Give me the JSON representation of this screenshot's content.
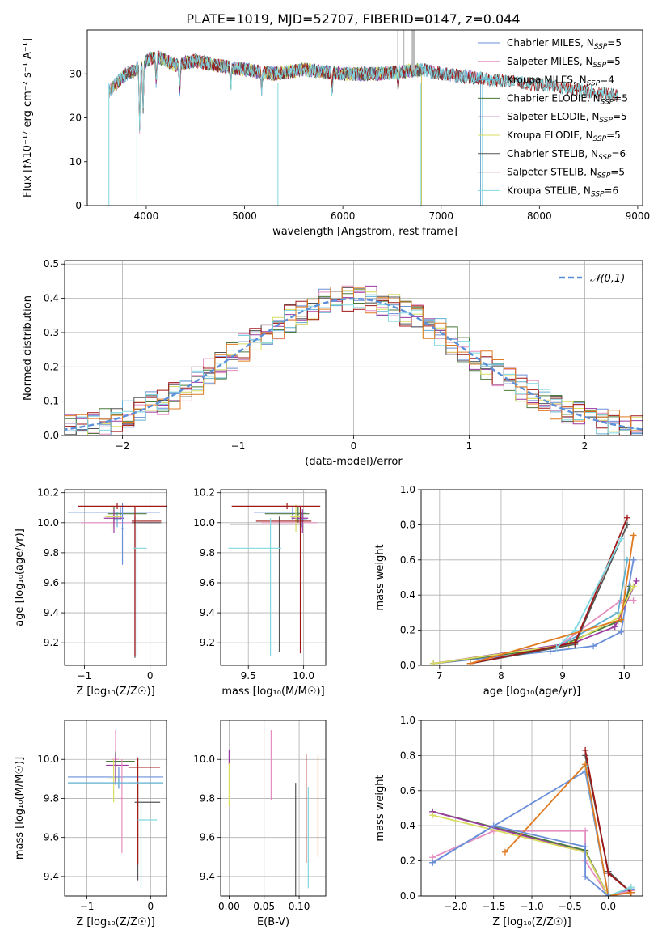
{
  "title": "PLATE=1019, MJD=52707, FIBERID=0147, z=0.044",
  "colors": {
    "Chabrier MILES": "#6a8fd8",
    "Salpeter MILES": "#e58fc0",
    "Kroupa MILES": "#5fb0d0",
    "Chabrier ELODIE": "#4a7a3a",
    "Salpeter ELODIE": "#9a3aa0",
    "Kroupa ELODIE": "#d8dc60",
    "Chabrier STELIB": "#555555",
    "Salpeter STELIB": "#a01818",
    "Kroupa STELIB": "#80d8e0"
  },
  "chart_data": [
    {
      "id": "spectrum",
      "type": "line",
      "xlabel": "wavelength [Angstrom, rest frame]",
      "ylabel": "Flux [fλ10⁻¹⁷ erg cm⁻² s⁻¹ A⁻¹]",
      "xlim": [
        3400,
        9050
      ],
      "ylim": [
        0,
        40
      ],
      "xticks": [
        4000,
        5000,
        6000,
        7000,
        8000,
        9000
      ],
      "yticks": [
        0,
        10,
        20,
        30
      ],
      "grid": false,
      "legend_position": "right",
      "series": [
        {
          "name": "Chabrier MILES, N",
          "sub": "SSP",
          "suffix": "=5"
        },
        {
          "name": "Salpeter MILES, N",
          "sub": "SSP",
          "suffix": "=5"
        },
        {
          "name": "Kroupa MILES, N",
          "sub": "SSP",
          "suffix": "=4"
        },
        {
          "name": "Chabrier ELODIE, N",
          "sub": "SSP",
          "suffix": "=5"
        },
        {
          "name": "Salpeter ELODIE, N",
          "sub": "SSP",
          "suffix": "=5"
        },
        {
          "name": "Kroupa ELODIE, N",
          "sub": "SSP",
          "suffix": "=5"
        },
        {
          "name": "Chabrier STELIB, N",
          "sub": "SSP",
          "suffix": "=6"
        },
        {
          "name": "Salpeter STELIB, N",
          "sub": "SSP",
          "suffix": "=5"
        },
        {
          "name": "Kroupa STELIB, N",
          "sub": "SSP",
          "suffix": "=6"
        }
      ],
      "continuum": {
        "x": [
          3620,
          3700,
          3800,
          3900,
          4000,
          4100,
          4200,
          4300,
          4500,
          4700,
          5000,
          5300,
          5600,
          6000,
          6400,
          6800,
          7000,
          7400,
          7800,
          8200,
          8500,
          8800
        ],
        "y": [
          26,
          28,
          30,
          31,
          33,
          34,
          33,
          32,
          33,
          32,
          31,
          30,
          31,
          30,
          30,
          31,
          30,
          29,
          28,
          27,
          26,
          25
        ]
      }
    },
    {
      "id": "residuals",
      "type": "step",
      "xlabel": "(data-model)/error",
      "ylabel": "Normed distribution",
      "xlim": [
        -2.5,
        2.5
      ],
      "ylim": [
        0,
        0.51
      ],
      "xticks": [
        -2,
        -1,
        0,
        1,
        2
      ],
      "yticks": [
        0.0,
        0.1,
        0.2,
        0.3,
        0.4,
        0.5
      ],
      "grid": true,
      "legend": "𝒩(0,1)",
      "legend_position": "top-right"
    },
    {
      "id": "age-vs-Z",
      "type": "errorbar",
      "xlabel": "Z [log₁₀(Z/Z☉)]",
      "ylabel": "age  [log₁₀(age/yr)]",
      "xlim": [
        -1.3,
        0.25
      ],
      "ylim": [
        9.05,
        10.22
      ],
      "xticks": [
        -1,
        0
      ],
      "yticks": [
        9.2,
        9.4,
        9.6,
        9.8,
        10.0,
        10.2
      ],
      "grid": true,
      "points": [
        {
          "series": "Chabrier MILES",
          "x": -0.45,
          "xerr": [
            0.8,
            0.6
          ],
          "y": 10.07,
          "yerr": [
            0.05,
            0.03
          ]
        },
        {
          "series": "Salpeter MILES",
          "x": -0.55,
          "xerr": [
            0.5,
            0.7
          ],
          "y": 10.0,
          "yerr": [
            0.03,
            0.05
          ]
        },
        {
          "series": "Kroupa MILES",
          "x": -0.5,
          "xerr": [
            0.05,
            0.05
          ],
          "y": 10.02,
          "yerr": [
            0.05,
            0.05
          ]
        },
        {
          "series": "Chabrier ELODIE",
          "x": -0.55,
          "xerr": [
            0.1,
            0.5
          ],
          "y": 10.06,
          "yerr": [
            0.06,
            0.05
          ]
        },
        {
          "series": "Salpeter ELODIE",
          "x": -0.55,
          "xerr": [
            0.15,
            0.15
          ],
          "y": 10.03,
          "yerr": [
            0.1,
            0.06
          ]
        },
        {
          "series": "Kroupa ELODIE",
          "x": -0.58,
          "xerr": [
            0.1,
            0.15
          ],
          "y": 10.04,
          "yerr": [
            0.1,
            0.08
          ]
        },
        {
          "series": "Chabrier STELIB",
          "x": -0.23,
          "xerr": [
            0.05,
            0.4
          ],
          "y": 10.0,
          "yerr": [
            0.9,
            0.05
          ]
        },
        {
          "series": "Salpeter STELIB",
          "x": -0.23,
          "xerr": [
            0.05,
            0.4
          ],
          "y": 10.01,
          "yerr": [
            0.9,
            0.1
          ]
        },
        {
          "series": "Kroupa STELIB",
          "x": -0.2,
          "xerr": [
            0.05,
            0.15
          ],
          "y": 9.83,
          "yerr": [
            0.72,
            0.2
          ]
        },
        {
          "series": "Chabrier MILES",
          "x": -0.42,
          "xerr": [
            0.02,
            0.02
          ],
          "y": 9.96,
          "yerr": [
            0.24,
            0.17
          ]
        },
        {
          "series": "Salpeter STELIB",
          "x": -0.5,
          "xerr": [
            0.6,
            0.78
          ],
          "y": 10.11,
          "yerr": [
            0.02,
            0.02
          ]
        }
      ]
    },
    {
      "id": "age-vs-mass",
      "type": "errorbar",
      "xlabel": "mass [log₁₀(M/M☉)]",
      "ylabel": "",
      "xlim": [
        9.25,
        10.2
      ],
      "ylim": [
        9.05,
        10.22
      ],
      "xticks": [
        9.5,
        10.0
      ],
      "yticks": [
        9.2,
        9.4,
        9.6,
        9.8,
        10.0,
        10.2
      ],
      "grid": true,
      "points": [
        {
          "series": "Chabrier MILES",
          "x": 9.9,
          "xerr": [
            0.35,
            0.12
          ],
          "y": 10.07,
          "yerr": [
            0.05,
            0.03
          ]
        },
        {
          "series": "Salpeter MILES",
          "x": 9.97,
          "xerr": [
            0.35,
            0.15
          ],
          "y": 10.0,
          "yerr": [
            0.05,
            0.05
          ]
        },
        {
          "series": "Kroupa MILES",
          "x": 9.98,
          "xerr": [
            0.05,
            0.05
          ],
          "y": 10.02,
          "yerr": [
            0.05,
            0.05
          ]
        },
        {
          "series": "Chabrier ELODIE",
          "x": 9.95,
          "xerr": [
            0.3,
            0.1
          ],
          "y": 10.06,
          "yerr": [
            0.06,
            0.05
          ]
        },
        {
          "series": "Salpeter ELODIE",
          "x": 9.99,
          "xerr": [
            0.1,
            0.05
          ],
          "y": 10.03,
          "yerr": [
            0.1,
            0.06
          ]
        },
        {
          "series": "Kroupa ELODIE",
          "x": 9.93,
          "xerr": [
            0.05,
            0.05
          ],
          "y": 10.04,
          "yerr": [
            0.1,
            0.08
          ]
        },
        {
          "series": "Chabrier STELIB",
          "x": 9.78,
          "xerr": [
            0.45,
            0.2
          ],
          "y": 9.99,
          "yerr": [
            0.85,
            0.05
          ]
        },
        {
          "series": "Salpeter STELIB",
          "x": 9.97,
          "xerr": [
            0.4,
            0.1
          ],
          "y": 10.01,
          "yerr": [
            0.88,
            0.1
          ]
        },
        {
          "series": "Kroupa STELIB",
          "x": 9.7,
          "xerr": [
            0.38,
            0.1
          ],
          "y": 9.83,
          "yerr": [
            0.72,
            0.2
          ]
        },
        {
          "series": "Salpeter STELIB",
          "x": 9.85,
          "xerr": [
            0.5,
            0.3
          ],
          "y": 10.11,
          "yerr": [
            0.02,
            0.02
          ]
        }
      ]
    },
    {
      "id": "massweight-vs-age",
      "type": "line",
      "xlabel": "age  [log₁₀(age/yr)]",
      "ylabel": "mass weight",
      "xlim": [
        6.7,
        10.3
      ],
      "ylim": [
        0,
        1
      ],
      "xticks": [
        7,
        8,
        9,
        10
      ],
      "yticks": [
        0.0,
        0.2,
        0.4,
        0.6,
        0.8,
        1.0
      ],
      "grid": true,
      "series": [
        {
          "name": "Chabrier MILES",
          "x": [
            6.9,
            8.8,
            9.5,
            9.95,
            10.15
          ],
          "y": [
            0.01,
            0.08,
            0.11,
            0.19,
            0.6
          ]
        },
        {
          "name": "Salpeter MILES",
          "x": [
            6.9,
            8.9,
            9.95,
            10.15
          ],
          "y": [
            0.01,
            0.1,
            0.37,
            0.37
          ]
        },
        {
          "name": "Kroupa MILES",
          "x": [
            8.9,
            9.9,
            10.05
          ],
          "y": [
            0.1,
            0.3,
            0.6
          ]
        },
        {
          "name": "Chabrier ELODIE",
          "x": [
            6.9,
            8.9,
            9.9,
            10.1
          ],
          "y": [
            0.01,
            0.1,
            0.25,
            0.45
          ]
        },
        {
          "name": "Salpeter ELODIE",
          "x": [
            6.9,
            9.2,
            9.85,
            10.2
          ],
          "y": [
            0.01,
            0.13,
            0.22,
            0.48
          ]
        },
        {
          "name": "Kroupa ELODIE",
          "x": [
            6.9,
            9.1,
            9.9,
            10.15
          ],
          "y": [
            0.01,
            0.12,
            0.27,
            0.45
          ]
        },
        {
          "name": "Chabrier STELIB",
          "x": [
            7.5,
            9.2,
            10.05
          ],
          "y": [
            0.01,
            0.12,
            0.8
          ]
        },
        {
          "name": "Salpeter STELIB",
          "x": [
            7.5,
            9.2,
            10.05
          ],
          "y": [
            0.01,
            0.13,
            0.84
          ]
        },
        {
          "name": "Kroupa STELIB",
          "x": [
            8.9,
            9.2,
            9.95
          ],
          "y": [
            0.1,
            0.2,
            0.72
          ]
        },
        {
          "name": "orange",
          "x": [
            7.5,
            9.95,
            10.15
          ],
          "y": [
            0.01,
            0.26,
            0.74
          ]
        }
      ]
    },
    {
      "id": "mass-vs-Z",
      "type": "errorbar",
      "xlabel": "Z [log₁₀(Z/Z☉)]",
      "ylabel": "mass [log₁₀(M/M☉)]",
      "xlim": [
        -1.35,
        0.25
      ],
      "ylim": [
        9.3,
        10.2
      ],
      "xticks": [
        -1,
        0
      ],
      "yticks": [
        9.4,
        9.6,
        9.8,
        10.0
      ],
      "grid": true,
      "points": [
        {
          "series": "Chabrier MILES",
          "x": -0.5,
          "xerr": [
            0.8,
            0.7
          ],
          "y": 9.91,
          "yerr": [
            0.06,
            0.05
          ]
        },
        {
          "series": "Salpeter MILES",
          "x": -0.55,
          "xerr": [
            0.05,
            0.05
          ],
          "y": 10.0,
          "yerr": [
            0.1,
            0.15
          ]
        },
        {
          "series": "Chabrier ELODIE",
          "x": -0.55,
          "xerr": [
            0.15,
            0.3
          ],
          "y": 9.99,
          "yerr": [
            0.1,
            0.05
          ]
        },
        {
          "series": "Salpeter ELODIE",
          "x": -0.55,
          "xerr": [
            0.15,
            0.2
          ],
          "y": 9.97,
          "yerr": [
            0.1,
            0.06
          ]
        },
        {
          "series": "Kroupa ELODIE",
          "x": -0.58,
          "xerr": [
            0.1,
            0.15
          ],
          "y": 9.9,
          "yerr": [
            0.12,
            0.1
          ]
        },
        {
          "series": "Chabrier STELIB",
          "x": -0.2,
          "xerr": [
            0.05,
            0.35
          ],
          "y": 9.78,
          "yerr": [
            0.4,
            0.1
          ]
        },
        {
          "series": "Salpeter STELIB",
          "x": -0.2,
          "xerr": [
            0.15,
            0.35
          ],
          "y": 9.96,
          "yerr": [
            0.5,
            0.05
          ]
        },
        {
          "series": "Kroupa STELIB",
          "x": -0.15,
          "xerr": [
            0.05,
            0.25
          ],
          "y": 9.69,
          "yerr": [
            0.35,
            0.1
          ]
        },
        {
          "series": "Salpeter MILES",
          "x": -0.45,
          "xerr": [
            0.02,
            0.02
          ],
          "y": 9.8,
          "yerr": [
            0.28,
            0.2
          ]
        },
        {
          "series": "Kroupa MILES",
          "x": -0.5,
          "xerr": [
            0.8,
            0.7
          ],
          "y": 9.88,
          "yerr": [
            0.02,
            0.02
          ]
        }
      ]
    },
    {
      "id": "mass-vs-EBV",
      "type": "errorbar",
      "xlabel": "E(B-V)",
      "ylabel": "",
      "xlim": [
        -0.012,
        0.138
      ],
      "ylim": [
        9.3,
        10.2
      ],
      "xticks": [
        0.0,
        0.05,
        0.1
      ],
      "yticks": [
        9.4,
        9.6,
        9.8,
        10.0
      ],
      "grid": true,
      "points": [
        {
          "series": "Salpeter ELODIE",
          "x": 0.0,
          "xerr": [
            0,
            0
          ],
          "y": 10.0,
          "yerr": [
            0.03,
            0.05
          ]
        },
        {
          "series": "Kroupa ELODIE",
          "x": 0.0,
          "xerr": [
            0,
            0
          ],
          "y": 9.88,
          "yerr": [
            0.12,
            0.1
          ]
        },
        {
          "series": "Salpeter MILES",
          "x": 0.06,
          "xerr": [
            0,
            0
          ],
          "y": 9.97,
          "yerr": [
            0.18,
            0.18
          ]
        },
        {
          "series": "Chabrier STELIB",
          "x": 0.095,
          "xerr": [
            0,
            0
          ],
          "y": 9.48,
          "yerr": [
            0.35,
            0.4
          ]
        },
        {
          "series": "Salpeter STELIB",
          "x": 0.11,
          "xerr": [
            0,
            0
          ],
          "y": 9.75,
          "yerr": [
            0.28,
            0.28
          ]
        },
        {
          "series": "Kroupa STELIB",
          "x": 0.113,
          "xerr": [
            0,
            0
          ],
          "y": 9.6,
          "yerr": [
            0.26,
            0.26
          ]
        },
        {
          "series": "orange",
          "x": 0.127,
          "xerr": [
            0,
            0
          ],
          "y": 9.76,
          "yerr": [
            0.26,
            0.26
          ]
        }
      ]
    },
    {
      "id": "massweight-vs-Z",
      "type": "line",
      "xlabel": "Z [log₁₀(Z/Z☉)]",
      "ylabel": "mass weight",
      "xlim": [
        -2.45,
        0.45
      ],
      "ylim": [
        0,
        1
      ],
      "xticks": [
        -2.0,
        -1.5,
        -1.0,
        -0.5,
        0.0
      ],
      "yticks": [
        0.0,
        0.2,
        0.4,
        0.6,
        0.8,
        1.0
      ],
      "grid": true,
      "series": [
        {
          "name": "Chabrier MILES",
          "x": [
            -2.3,
            -0.3,
            0.0,
            0.3
          ],
          "y": [
            0.19,
            0.71,
            0.0,
            0.04
          ]
        },
        {
          "name": "Salpeter MILES",
          "x": [
            -2.3,
            -1.5,
            -0.3,
            -0.3,
            0.0,
            0.3
          ],
          "y": [
            0.22,
            0.37,
            0.37,
            0.2,
            0.0,
            0.03
          ]
        },
        {
          "name": "Chabrier ELODIE",
          "x": [
            -2.3,
            -0.3,
            0.0
          ],
          "y": [
            0.48,
            0.26,
            0.0
          ]
        },
        {
          "name": "Salpeter ELODIE",
          "x": [
            -2.3,
            -0.3,
            0.0
          ],
          "y": [
            0.48,
            0.25,
            0.0
          ]
        },
        {
          "name": "Kroupa ELODIE",
          "x": [
            -2.3,
            -0.3,
            0.0,
            0.3
          ],
          "y": [
            0.46,
            0.25,
            0.0,
            0.05
          ]
        },
        {
          "name": "Chabrier STELIB",
          "x": [
            -0.3,
            0.0,
            0.3
          ],
          "y": [
            0.8,
            0.14,
            0.02
          ]
        },
        {
          "name": "Salpeter STELIB",
          "x": [
            -0.3,
            0.0,
            0.3
          ],
          "y": [
            0.83,
            0.13,
            0.02
          ]
        },
        {
          "name": "Kroupa STELIB",
          "x": [
            -0.3,
            0.0,
            0.3
          ],
          "y": [
            0.74,
            0.0,
            0.05
          ]
        },
        {
          "name": "orange",
          "x": [
            -1.35,
            -0.3,
            0.0,
            0.3
          ],
          "y": [
            0.25,
            0.75,
            0.0,
            0.02
          ]
        },
        {
          "name": "Chabrier MILES",
          "x": [
            -2.3,
            -1.5,
            -0.3,
            -0.3,
            0.0
          ],
          "y": [
            0.19,
            0.4,
            0.28,
            0.11,
            0.0
          ]
        }
      ]
    }
  ]
}
